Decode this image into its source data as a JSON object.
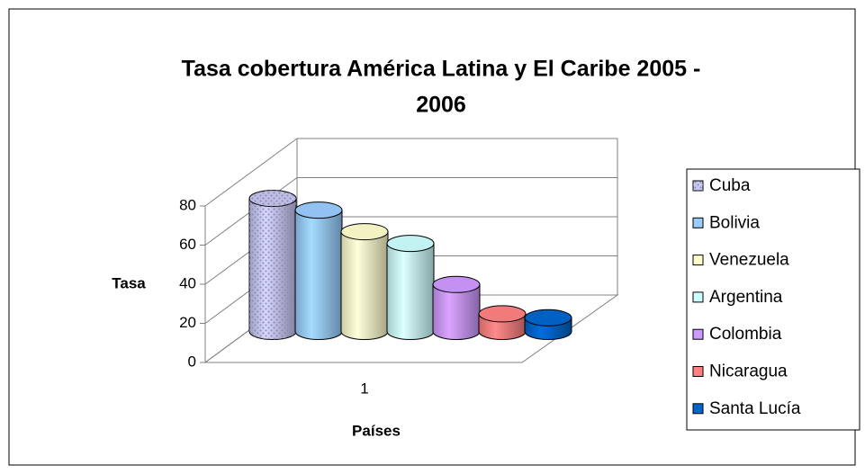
{
  "chart_data": {
    "type": "bar3d-cylinder",
    "title": "Tasa cobertura América Latina y El Caribe 2005 - 2006",
    "x_label": "Países",
    "y_label": "Tasa",
    "categories": [
      "1"
    ],
    "series": [
      {
        "name": "Cuba",
        "color": "#c8c8f0",
        "values": [
          68
        ]
      },
      {
        "name": "Bolivia",
        "color": "#99ccff",
        "values": [
          62
        ]
      },
      {
        "name": "Venezuela",
        "color": "#ffffcc",
        "values": [
          51
        ]
      },
      {
        "name": "Argentina",
        "color": "#ccffff",
        "values": [
          45
        ]
      },
      {
        "name": "Colombia",
        "color": "#cc99ff",
        "values": [
          24
        ]
      },
      {
        "name": "Nicaragua",
        "color": "#ff8080",
        "values": [
          9
        ]
      },
      {
        "name": "Santa Lucía",
        "color": "#0066cc",
        "values": [
          7
        ]
      }
    ],
    "ylim": [
      0,
      80
    ],
    "yticks": [
      0,
      20,
      40,
      60,
      80
    ],
    "grid": true,
    "legend": "right"
  }
}
